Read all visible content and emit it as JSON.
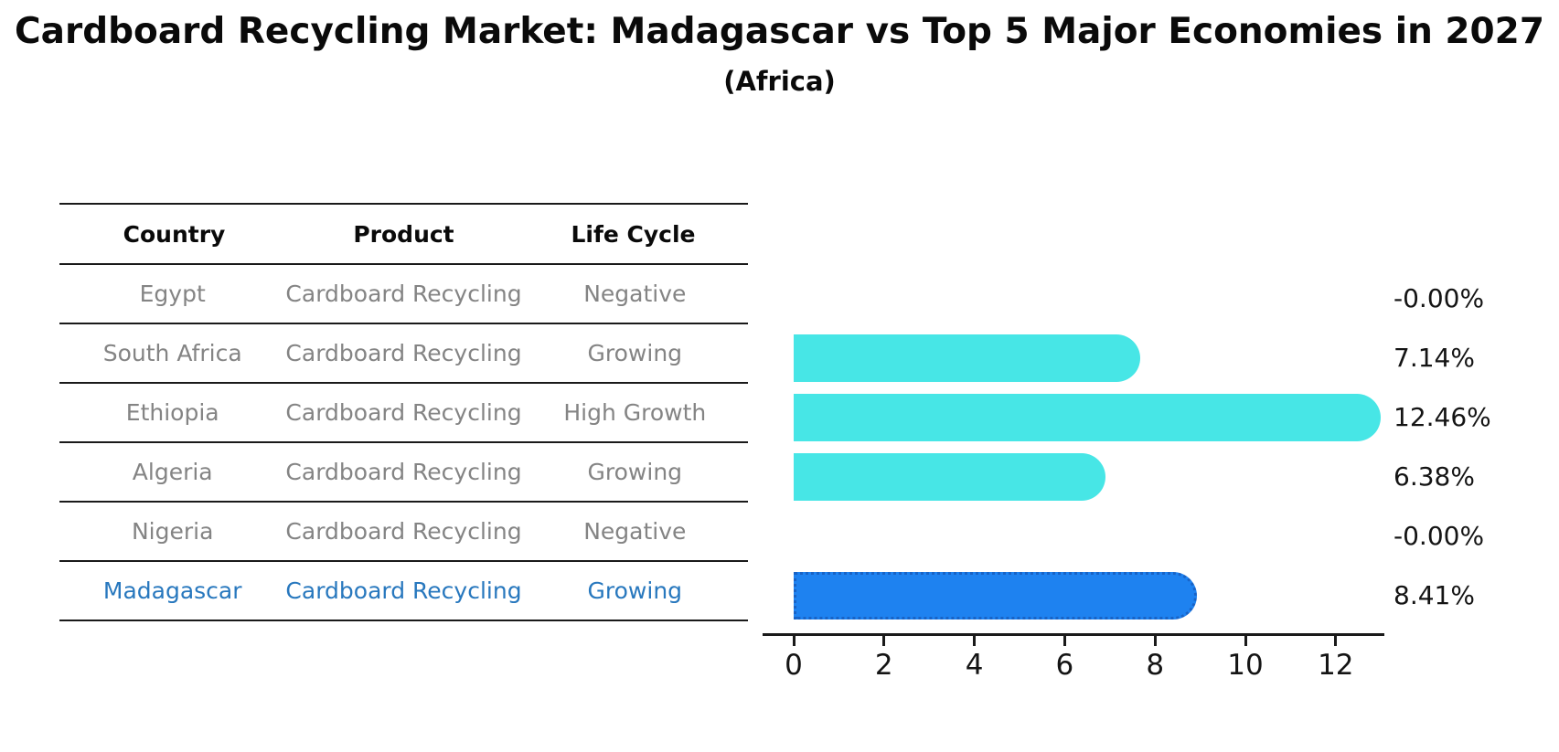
{
  "title": "Cardboard Recycling Market: Madagascar vs Top 5 Major Economies in 2027",
  "subtitle": "(Africa)",
  "table": {
    "headers": {
      "country": "Country",
      "product": "Product",
      "life_cycle": "Life Cycle"
    },
    "rows": [
      {
        "country": "Egypt",
        "product": "Cardboard Recycling",
        "life_cycle": "Negative",
        "value_label": "-0.00%",
        "highlighted": false
      },
      {
        "country": "South Africa",
        "product": "Cardboard Recycling",
        "life_cycle": "Growing",
        "value_label": "7.14%",
        "highlighted": false
      },
      {
        "country": "Ethiopia",
        "product": "Cardboard Recycling",
        "life_cycle": "High Growth",
        "value_label": "12.46%",
        "highlighted": false
      },
      {
        "country": "Algeria",
        "product": "Cardboard Recycling",
        "life_cycle": "Growing",
        "value_label": "6.38%",
        "highlighted": false
      },
      {
        "country": "Nigeria",
        "product": "Cardboard Recycling",
        "life_cycle": "Negative",
        "value_label": "-0.00%",
        "highlighted": false
      },
      {
        "country": "Madagascar",
        "product": "Cardboard Recycling",
        "life_cycle": "Growing",
        "value_label": "8.41%",
        "highlighted": true
      }
    ]
  },
  "chart_data": {
    "type": "bar",
    "orientation": "horizontal",
    "title": "Cardboard Recycling Market: Madagascar vs Top 5 Major Economies in 2027 (Africa)",
    "categories": [
      "Egypt",
      "South Africa",
      "Ethiopia",
      "Algeria",
      "Nigeria",
      "Madagascar"
    ],
    "values": [
      -0.0,
      7.14,
      12.46,
      6.38,
      -0.0,
      8.41
    ],
    "value_labels": [
      "-0.00%",
      "7.14%",
      "12.46%",
      "6.38%",
      "-0.00%",
      "8.41%"
    ],
    "unit": "percent",
    "xlim": [
      0,
      13.1
    ],
    "xticks": [
      0,
      2,
      4,
      6,
      8,
      10,
      12
    ],
    "grid": false,
    "legend": false,
    "highlight_index": 5
  },
  "colors": {
    "bar_default": "#47E6E6",
    "bar_highlight": "#1E82F0",
    "bar_highlight_border": "#1863C6",
    "text_default": "#848484",
    "text_highlight": "#2878be",
    "axis": "#1a1a1a"
  }
}
